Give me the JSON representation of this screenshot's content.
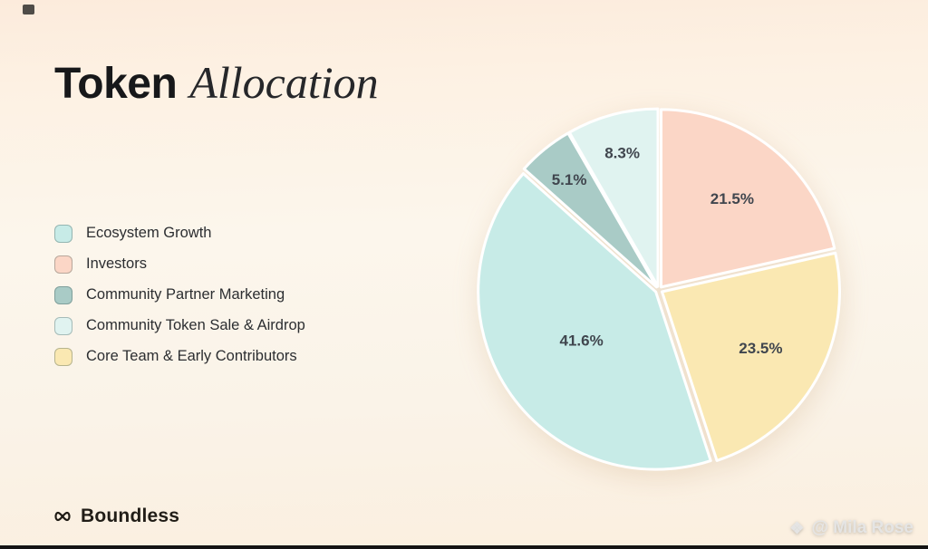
{
  "title": {
    "regular": "Token",
    "italic": "Allocation"
  },
  "chart_data": {
    "type": "pie",
    "title": "Token Allocation",
    "start_angle_deg": 0,
    "direction": "clockwise",
    "value_suffix": "%",
    "legend_position": "left",
    "slices": [
      {
        "label": "Investors",
        "value": 21.5,
        "color": "#fbd6c6"
      },
      {
        "label": "Core Team & Early Contributors",
        "value": 23.5,
        "color": "#fae8b2"
      },
      {
        "label": "Ecosystem Growth",
        "value": 41.6,
        "color": "#c7ebe7"
      },
      {
        "label": "Community Partner Marketing",
        "value": 5.1,
        "color": "#a9cbc6"
      },
      {
        "label": "Community Token Sale & Airdrop",
        "value": 8.3,
        "color": "#e0f3f0"
      }
    ]
  },
  "legend_order": [
    2,
    0,
    3,
    4,
    1
  ],
  "colors": {
    "slice_label": "#40464e",
    "slice_separator": "#ffffff",
    "background_top": "#fcebdc",
    "background_bottom": "#fbefdf"
  },
  "footer": {
    "brand": "Boundless"
  },
  "watermark": {
    "text": "@ Mila Rose"
  }
}
